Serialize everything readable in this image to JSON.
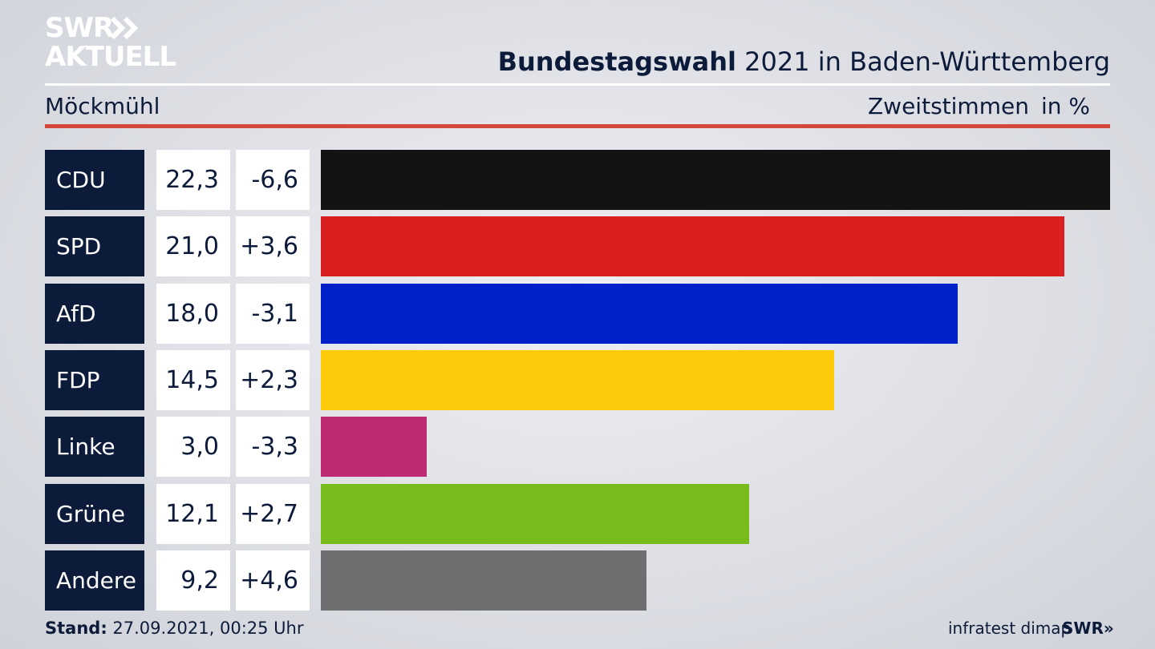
{
  "brand": {
    "line1": "SWR",
    "line2": "AKTUELL",
    "footer_logo": "SWR»"
  },
  "header": {
    "title_bold": "Bundestagswahl",
    "title_rest": " 2021 in Baden-Württemberg",
    "region": "Möckmühl",
    "measure": "Zweitstimmen",
    "unit": "in %"
  },
  "chart_data": {
    "type": "bar",
    "categories": [
      "CDU",
      "SPD",
      "AfD",
      "FDP",
      "Linke",
      "Grüne",
      "Andere"
    ],
    "values": [
      22.3,
      21.0,
      18.0,
      14.5,
      3.0,
      12.1,
      9.2
    ],
    "value_labels": [
      "22,3",
      "21,0",
      "18,0",
      "14,5",
      "3,0",
      "12,1",
      "9,2"
    ],
    "diffs": [
      -6.6,
      3.6,
      -3.1,
      2.3,
      -3.3,
      2.7,
      4.6
    ],
    "diff_labels": [
      "-6,6",
      "+3,6",
      "-3,1",
      "+2,3",
      "-3,3",
      "+2,7",
      "+4,6"
    ],
    "colors": [
      "#131313",
      "#d91f1f",
      "#0021c9",
      "#fecb0a",
      "#bd2c72",
      "#78bc1b",
      "#6f6f71"
    ]
  },
  "footer": {
    "stand_label": "Stand:",
    "stand_value": " 27.09.2021, 00:25 Uhr",
    "source": "infratest dimap"
  }
}
